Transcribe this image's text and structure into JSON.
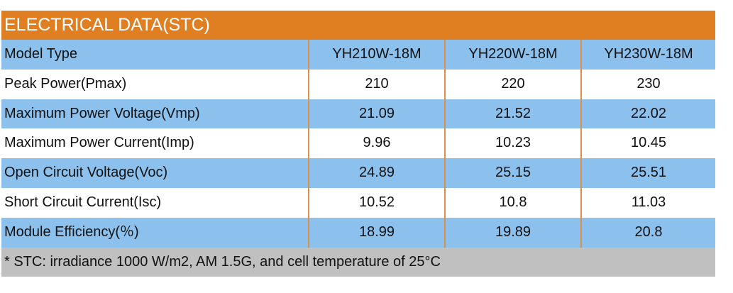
{
  "title": "ELECTRICAL DATA(STC)",
  "colors": {
    "header": "#e07e22",
    "blue_row": "#8cc1ee",
    "footer": "#c0c0c0",
    "divider": "#d8904a"
  },
  "rows": [
    {
      "label": "Model Type",
      "values": [
        "YH210W-18M",
        "YH220W-18M",
        "YH230W-18M"
      ]
    },
    {
      "label": "Peak Power(Pmax)",
      "values": [
        "210",
        "220",
        "230"
      ]
    },
    {
      "label": "Maximum Power Voltage(Vmp)",
      "values": [
        "21.09",
        "21.52",
        "22.02"
      ]
    },
    {
      "label": "Maximum Power Current(Imp)",
      "values": [
        "9.96",
        "10.23",
        "10.45"
      ]
    },
    {
      "label": "Open Circuit Voltage(Voc)",
      "values": [
        "24.89",
        "25.15",
        "25.51"
      ]
    },
    {
      "label": "Short Circuit Current(Isc)",
      "values": [
        "10.52",
        "10.8",
        "11.03"
      ]
    },
    {
      "label": "Module Efficiency(％)",
      "values": [
        "18.99",
        "19.89",
        "20.8"
      ]
    }
  ],
  "footnote": "* STC:  irradiance 1000 W/m2, AM 1.5G, and cell temperature of 25°C"
}
